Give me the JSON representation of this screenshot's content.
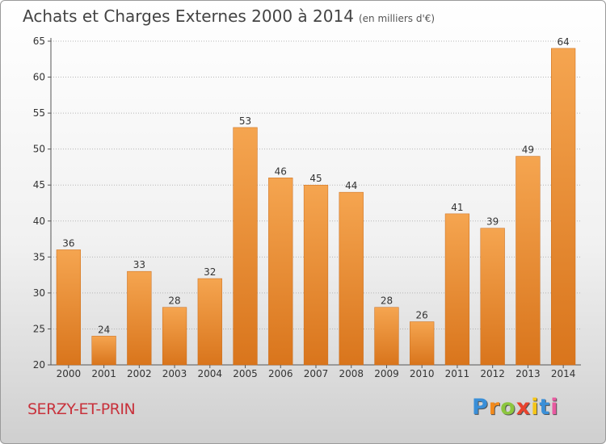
{
  "header": {
    "title": "Achats et Charges Externes 2000 à 2014",
    "unit": "(en milliers d'€)"
  },
  "footer": {
    "commune": "SERZY-ET-PRIN",
    "brand": "Proxiti",
    "brand_letters": [
      {
        "char": "P",
        "color": "#3a8fd8"
      },
      {
        "char": "r",
        "color": "#f28a1c"
      },
      {
        "char": "o",
        "color": "#8cc63f"
      },
      {
        "char": "x",
        "color": "#e8432e"
      },
      {
        "char": "i",
        "color": "#f5c518"
      },
      {
        "char": "t",
        "color": "#3a8fd8"
      },
      {
        "char": "i",
        "color": "#e85aa0"
      }
    ]
  },
  "chart_data": {
    "type": "bar",
    "title": "Achats et Charges Externes 2000 à 2014",
    "subtitle": "(en milliers d'€)",
    "xlabel": "",
    "ylabel": "",
    "categories": [
      "2000",
      "2001",
      "2002",
      "2003",
      "2004",
      "2005",
      "2006",
      "2007",
      "2008",
      "2009",
      "2010",
      "2011",
      "2012",
      "2013",
      "2014"
    ],
    "values": [
      36,
      24,
      33,
      28,
      32,
      53,
      46,
      45,
      44,
      28,
      26,
      41,
      39,
      49,
      64
    ],
    "ylim": [
      20,
      65
    ],
    "yticks": [
      20,
      25,
      30,
      35,
      40,
      45,
      50,
      55,
      60,
      65
    ],
    "grid": true,
    "legend": "none",
    "colors": {
      "bar_light": "#f5a550",
      "bar_dark": "#d9751c",
      "grid": "#b5b5b5"
    }
  }
}
